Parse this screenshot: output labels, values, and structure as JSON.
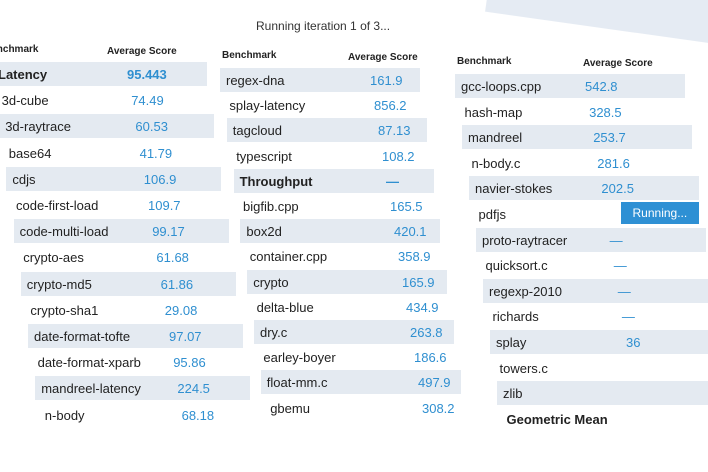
{
  "status": "Running iteration 1 of 3...",
  "columns": [
    {
      "header_benchmark": "Benchmark",
      "header_score": "Average Score",
      "rows": [
        {
          "name": "Latency",
          "score": "95.443",
          "group": true
        },
        {
          "name": "3d-cube",
          "score": "74.49"
        },
        {
          "name": "3d-raytrace",
          "score": "60.53"
        },
        {
          "name": "base64",
          "score": "41.79"
        },
        {
          "name": "cdjs",
          "score": "106.9"
        },
        {
          "name": "code-first-load",
          "score": "109.7"
        },
        {
          "name": "code-multi-load",
          "score": "99.17"
        },
        {
          "name": "crypto-aes",
          "score": "61.68"
        },
        {
          "name": "crypto-md5",
          "score": "61.86"
        },
        {
          "name": "crypto-sha1",
          "score": "29.08"
        },
        {
          "name": "date-format-tofte",
          "score": "97.07"
        },
        {
          "name": "date-format-xparb",
          "score": "95.86"
        },
        {
          "name": "mandreel-latency",
          "score": "224.5"
        },
        {
          "name": "n-body",
          "score": "68.18"
        }
      ]
    },
    {
      "header_benchmark": "Benchmark",
      "header_score": "Average Score",
      "rows": [
        {
          "name": "regex-dna",
          "score": "161.9"
        },
        {
          "name": "splay-latency",
          "score": "856.2"
        },
        {
          "name": "tagcloud",
          "score": "87.13"
        },
        {
          "name": "typescript",
          "score": "108.2"
        },
        {
          "name": "Throughput",
          "score": "—",
          "group": true
        },
        {
          "name": "bigfib.cpp",
          "score": "165.5"
        },
        {
          "name": "box2d",
          "score": "420.1"
        },
        {
          "name": "container.cpp",
          "score": "358.9"
        },
        {
          "name": "crypto",
          "score": "165.9"
        },
        {
          "name": "delta-blue",
          "score": "434.9"
        },
        {
          "name": "dry.c",
          "score": "263.8"
        },
        {
          "name": "earley-boyer",
          "score": "186.6"
        },
        {
          "name": "float-mm.c",
          "score": "497.9"
        },
        {
          "name": "gbemu",
          "score": "308.2"
        }
      ]
    },
    {
      "header_benchmark": "Benchmark",
      "header_score": "Average Score",
      "rows": [
        {
          "name": "gcc-loops.cpp",
          "score": "542.8"
        },
        {
          "name": "hash-map",
          "score": "328.5"
        },
        {
          "name": "mandreel",
          "score": "253.7"
        },
        {
          "name": "n-body.c",
          "score": "281.6"
        },
        {
          "name": "navier-stokes",
          "score": "202.5"
        },
        {
          "name": "pdfjs",
          "score": "Running...",
          "running": true
        },
        {
          "name": "proto-raytracer",
          "score": "—"
        },
        {
          "name": "quicksort.c",
          "score": "—"
        },
        {
          "name": "regexp-2010",
          "score": "—"
        },
        {
          "name": "richards",
          "score": "—"
        },
        {
          "name": "splay",
          "score": "36"
        },
        {
          "name": "towers.c",
          "score": ""
        },
        {
          "name": "zlib",
          "score": ""
        },
        {
          "name": "Geometric Mean",
          "score": "",
          "group": true
        }
      ]
    }
  ]
}
